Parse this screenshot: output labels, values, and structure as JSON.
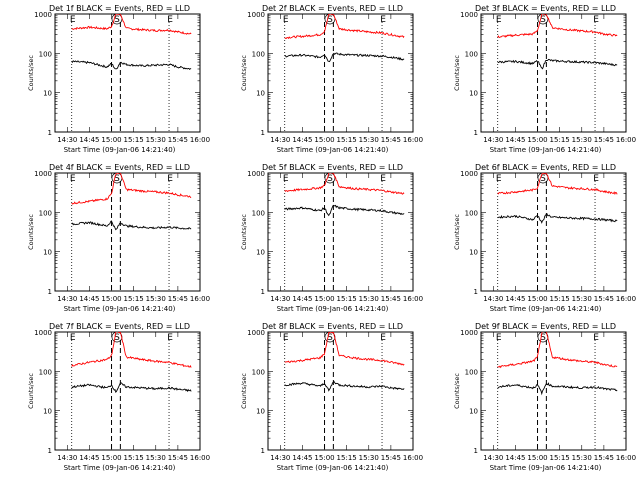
{
  "figure": {
    "xlabel": "Start Time (09-Jan-06 14:21:40)",
    "ylabel": "Counts/sec"
  },
  "chart_data": [
    {
      "type": "line",
      "title": "Det 1f BLACK = Events, RED = LLD",
      "xlabel": "Start Time (09-Jan-06 14:21:40)",
      "ylabel": "Counts/sec",
      "xlim": [
        "14:21:40",
        "16:00"
      ],
      "ylim": [
        1,
        1000
      ],
      "yscale": "log",
      "xticks": [
        "14:30",
        "14:45",
        "15:00",
        "15:15",
        "15:30",
        "15:45",
        "16:00"
      ],
      "yticks": [
        "1",
        "10",
        "100",
        "1000"
      ],
      "markers": [
        {
          "label": "E",
          "time": "14:33"
        },
        {
          "label": "S",
          "time": "15:03"
        },
        {
          "label": "E",
          "time": "15:39"
        }
      ],
      "vlines_dashed": [
        "15:00",
        "15:06"
      ],
      "series": [
        {
          "name": "LLD",
          "color": "#ff0000",
          "x": [
            "14:33",
            "14:45",
            "14:57",
            "15:00",
            "15:03",
            "15:06",
            "15:10",
            "15:20",
            "15:30",
            "15:39",
            "15:45",
            "15:54"
          ],
          "y": [
            420,
            460,
            420,
            480,
            1000,
            1000,
            430,
            400,
            380,
            390,
            350,
            310
          ]
        },
        {
          "name": "Events",
          "color": "#000000",
          "x": [
            "14:33",
            "14:45",
            "14:57",
            "15:00",
            "15:03",
            "15:06",
            "15:10",
            "15:20",
            "15:30",
            "15:39",
            "15:45",
            "15:54"
          ],
          "y": [
            62,
            58,
            45,
            55,
            38,
            60,
            52,
            48,
            50,
            52,
            45,
            40
          ]
        }
      ]
    },
    {
      "type": "line",
      "title": "Det 2f BLACK = Events, RED = LLD",
      "xlabel": "Start Time (09-Jan-06 14:21:40)",
      "ylabel": "Counts/sec",
      "xlim": [
        "14:21:40",
        "16:00"
      ],
      "ylim": [
        1,
        1000
      ],
      "yscale": "log",
      "xticks": [
        "14:30",
        "14:45",
        "15:00",
        "15:15",
        "15:30",
        "15:45",
        "16:00"
      ],
      "yticks": [
        "1",
        "10",
        "100",
        "1000"
      ],
      "markers": [
        {
          "label": "E",
          "time": "14:33"
        },
        {
          "label": "S",
          "time": "15:03"
        },
        {
          "label": "E",
          "time": "15:39"
        }
      ],
      "vlines_dashed": [
        "15:00",
        "15:06"
      ],
      "series": [
        {
          "name": "LLD",
          "color": "#ff0000",
          "x": [
            "14:33",
            "14:45",
            "14:57",
            "15:00",
            "15:03",
            "15:06",
            "15:10",
            "15:20",
            "15:30",
            "15:39",
            "15:45",
            "15:54"
          ],
          "y": [
            250,
            270,
            300,
            360,
            1000,
            1000,
            420,
            380,
            350,
            330,
            300,
            260
          ]
        },
        {
          "name": "Events",
          "color": "#000000",
          "x": [
            "14:33",
            "14:45",
            "14:57",
            "15:00",
            "15:03",
            "15:06",
            "15:10",
            "15:20",
            "15:30",
            "15:39",
            "15:45",
            "15:54"
          ],
          "y": [
            85,
            90,
            80,
            95,
            60,
            100,
            95,
            90,
            88,
            85,
            80,
            70
          ]
        }
      ]
    },
    {
      "type": "line",
      "title": "Det 3f BLACK = Events, RED = LLD",
      "xlabel": "Start Time (09-Jan-06 14:21:40)",
      "ylabel": "Counts/sec",
      "xlim": [
        "14:21:40",
        "16:00"
      ],
      "ylim": [
        1,
        1000
      ],
      "yscale": "log",
      "xticks": [
        "14:30",
        "14:45",
        "15:00",
        "15:15",
        "15:30",
        "15:45",
        "16:00"
      ],
      "yticks": [
        "1",
        "10",
        "100",
        "1000"
      ],
      "markers": [
        {
          "label": "E",
          "time": "14:33"
        },
        {
          "label": "S",
          "time": "15:03"
        },
        {
          "label": "E",
          "time": "15:39"
        }
      ],
      "vlines_dashed": [
        "15:00",
        "15:06"
      ],
      "series": [
        {
          "name": "LLD",
          "color": "#ff0000",
          "x": [
            "14:33",
            "14:45",
            "14:57",
            "15:00",
            "15:03",
            "15:06",
            "15:10",
            "15:20",
            "15:30",
            "15:39",
            "15:45",
            "15:54"
          ],
          "y": [
            260,
            290,
            310,
            380,
            1000,
            1000,
            450,
            400,
            370,
            350,
            310,
            280
          ]
        },
        {
          "name": "Events",
          "color": "#000000",
          "x": [
            "14:33",
            "14:45",
            "14:57",
            "15:00",
            "15:03",
            "15:06",
            "15:10",
            "15:20",
            "15:30",
            "15:39",
            "15:45",
            "15:54"
          ],
          "y": [
            60,
            62,
            55,
            65,
            40,
            70,
            65,
            62,
            60,
            58,
            55,
            50
          ]
        }
      ]
    },
    {
      "type": "line",
      "title": "Det 4f BLACK = Events, RED = LLD",
      "xlabel": "Start Time (09-Jan-06 14:21:40)",
      "ylabel": "Counts/sec",
      "xlim": [
        "14:21:40",
        "16:00"
      ],
      "ylim": [
        1,
        1000
      ],
      "yscale": "log",
      "xticks": [
        "14:30",
        "14:45",
        "15:00",
        "15:15",
        "15:30",
        "15:45",
        "16:00"
      ],
      "yticks": [
        "1",
        "10",
        "100",
        "1000"
      ],
      "markers": [
        {
          "label": "E",
          "time": "14:33"
        },
        {
          "label": "S",
          "time": "15:03"
        },
        {
          "label": "E",
          "time": "15:39"
        }
      ],
      "vlines_dashed": [
        "15:00",
        "15:06"
      ],
      "series": [
        {
          "name": "LLD",
          "color": "#ff0000",
          "x": [
            "14:33",
            "14:45",
            "14:57",
            "15:00",
            "15:03",
            "15:06",
            "15:10",
            "15:20",
            "15:30",
            "15:39",
            "15:45",
            "15:54"
          ],
          "y": [
            170,
            190,
            220,
            300,
            1000,
            1000,
            380,
            350,
            330,
            310,
            280,
            250
          ]
        },
        {
          "name": "Events",
          "color": "#000000",
          "x": [
            "14:33",
            "14:45",
            "14:57",
            "15:00",
            "15:03",
            "15:06",
            "15:10",
            "15:20",
            "15:30",
            "15:39",
            "15:45",
            "15:54"
          ],
          "y": [
            50,
            55,
            45,
            60,
            35,
            55,
            45,
            42,
            40,
            42,
            40,
            38
          ]
        }
      ]
    },
    {
      "type": "line",
      "title": "Det 5f BLACK = Events, RED = LLD",
      "xlabel": "Start Time (09-Jan-06 14:21:40)",
      "ylabel": "Counts/sec",
      "xlim": [
        "14:21:40",
        "16:00"
      ],
      "ylim": [
        1,
        1000
      ],
      "yscale": "log",
      "xticks": [
        "14:30",
        "14:45",
        "15:00",
        "15:15",
        "15:30",
        "15:45",
        "16:00"
      ],
      "yticks": [
        "1",
        "10",
        "100",
        "1000"
      ],
      "markers": [
        {
          "label": "E",
          "time": "14:33"
        },
        {
          "label": "S",
          "time": "15:03"
        },
        {
          "label": "E",
          "time": "15:39"
        }
      ],
      "vlines_dashed": [
        "15:00",
        "15:06"
      ],
      "series": [
        {
          "name": "LLD",
          "color": "#ff0000",
          "x": [
            "14:33",
            "14:45",
            "14:57",
            "15:00",
            "15:03",
            "15:06",
            "15:10",
            "15:20",
            "15:30",
            "15:39",
            "15:45",
            "15:54"
          ],
          "y": [
            350,
            380,
            420,
            480,
            1000,
            1000,
            450,
            400,
            380,
            360,
            330,
            300
          ]
        },
        {
          "name": "Events",
          "color": "#000000",
          "x": [
            "14:33",
            "14:45",
            "14:57",
            "15:00",
            "15:03",
            "15:06",
            "15:10",
            "15:20",
            "15:30",
            "15:39",
            "15:45",
            "15:54"
          ],
          "y": [
            120,
            130,
            110,
            130,
            80,
            150,
            130,
            120,
            115,
            110,
            100,
            90
          ]
        }
      ]
    },
    {
      "type": "line",
      "title": "Det 6f BLACK = Events, RED = LLD",
      "xlabel": "Start Time (09-Jan-06 14:21:40)",
      "ylabel": "Counts/sec",
      "xlim": [
        "14:21:40",
        "16:00"
      ],
      "ylim": [
        1,
        1000
      ],
      "yscale": "log",
      "xticks": [
        "14:30",
        "14:45",
        "15:00",
        "15:15",
        "15:30",
        "15:45",
        "16:00"
      ],
      "yticks": [
        "1",
        "10",
        "100",
        "1000"
      ],
      "markers": [
        {
          "label": "E",
          "time": "14:33"
        },
        {
          "label": "S",
          "time": "15:03"
        },
        {
          "label": "E",
          "time": "15:39"
        }
      ],
      "vlines_dashed": [
        "15:00",
        "15:06"
      ],
      "series": [
        {
          "name": "LLD",
          "color": "#ff0000",
          "x": [
            "14:33",
            "14:45",
            "14:57",
            "15:00",
            "15:03",
            "15:06",
            "15:10",
            "15:20",
            "15:30",
            "15:39",
            "15:45",
            "15:54"
          ],
          "y": [
            300,
            330,
            370,
            420,
            1000,
            1000,
            470,
            420,
            400,
            380,
            340,
            300
          ]
        },
        {
          "name": "Events",
          "color": "#000000",
          "x": [
            "14:33",
            "14:45",
            "14:57",
            "15:00",
            "15:03",
            "15:06",
            "15:10",
            "15:20",
            "15:30",
            "15:39",
            "15:45",
            "15:54"
          ],
          "y": [
            75,
            80,
            65,
            85,
            55,
            90,
            75,
            72,
            70,
            68,
            65,
            60
          ]
        }
      ]
    },
    {
      "type": "line",
      "title": "Det 7f BLACK = Events, RED = LLD",
      "xlabel": "Start Time (09-Jan-06 14:21:40)",
      "ylabel": "Counts/sec",
      "xlim": [
        "14:21:40",
        "16:00"
      ],
      "ylim": [
        1,
        1000
      ],
      "yscale": "log",
      "xticks": [
        "14:30",
        "14:45",
        "15:00",
        "15:15",
        "15:30",
        "15:45",
        "16:00"
      ],
      "yticks": [
        "1",
        "10",
        "100",
        "1000"
      ],
      "markers": [
        {
          "label": "E",
          "time": "14:33"
        },
        {
          "label": "S",
          "time": "15:03"
        },
        {
          "label": "E",
          "time": "15:39"
        }
      ],
      "vlines_dashed": [
        "15:00",
        "15:06"
      ],
      "series": [
        {
          "name": "LLD",
          "color": "#ff0000",
          "x": [
            "14:33",
            "14:45",
            "14:57",
            "15:00",
            "15:03",
            "15:06",
            "15:10",
            "15:20",
            "15:30",
            "15:39",
            "15:45",
            "15:54"
          ],
          "y": [
            140,
            170,
            200,
            250,
            1000,
            1000,
            230,
            200,
            180,
            170,
            150,
            130
          ]
        },
        {
          "name": "Events",
          "color": "#000000",
          "x": [
            "14:33",
            "14:45",
            "14:57",
            "15:00",
            "15:03",
            "15:06",
            "15:10",
            "15:20",
            "15:30",
            "15:39",
            "15:45",
            "15:54"
          ],
          "y": [
            40,
            45,
            38,
            45,
            30,
            50,
            40,
            38,
            36,
            38,
            35,
            32
          ]
        }
      ]
    },
    {
      "type": "line",
      "title": "Det 8f BLACK = Events, RED = LLD",
      "xlabel": "Start Time (09-Jan-06 14:21:40)",
      "ylabel": "Counts/sec",
      "xlim": [
        "14:21:40",
        "16:00"
      ],
      "ylim": [
        1,
        1000
      ],
      "yscale": "log",
      "xticks": [
        "14:30",
        "14:45",
        "15:00",
        "15:15",
        "15:30",
        "15:45",
        "16:00"
      ],
      "yticks": [
        "1",
        "10",
        "100",
        "1000"
      ],
      "markers": [
        {
          "label": "E",
          "time": "14:33"
        },
        {
          "label": "S",
          "time": "15:03"
        },
        {
          "label": "E",
          "time": "15:39"
        }
      ],
      "vlines_dashed": [
        "15:00",
        "15:06"
      ],
      "series": [
        {
          "name": "LLD",
          "color": "#ff0000",
          "x": [
            "14:33",
            "14:45",
            "14:57",
            "15:00",
            "15:03",
            "15:06",
            "15:10",
            "15:20",
            "15:30",
            "15:39",
            "15:45",
            "15:54"
          ],
          "y": [
            170,
            190,
            220,
            280,
            1000,
            1000,
            250,
            220,
            200,
            190,
            170,
            150
          ]
        },
        {
          "name": "Events",
          "color": "#000000",
          "x": [
            "14:33",
            "14:45",
            "14:57",
            "15:00",
            "15:03",
            "15:06",
            "15:10",
            "15:20",
            "15:30",
            "15:39",
            "15:45",
            "15:54"
          ],
          "y": [
            45,
            50,
            42,
            50,
            32,
            55,
            45,
            42,
            40,
            42,
            38,
            35
          ]
        }
      ]
    },
    {
      "type": "line",
      "title": "Det 9f BLACK = Events, RED = LLD",
      "xlabel": "Start Time (09-Jan-06 14:21:40)",
      "ylabel": "Counts/sec",
      "xlim": [
        "14:21:40",
        "16:00"
      ],
      "ylim": [
        1,
        1000
      ],
      "yscale": "log",
      "xticks": [
        "14:30",
        "14:45",
        "15:00",
        "15:15",
        "15:30",
        "15:45",
        "16:00"
      ],
      "yticks": [
        "1",
        "10",
        "100",
        "1000"
      ],
      "markers": [
        {
          "label": "E",
          "time": "14:33"
        },
        {
          "label": "S",
          "time": "15:03"
        },
        {
          "label": "E",
          "time": "15:39"
        }
      ],
      "vlines_dashed": [
        "15:00",
        "15:06"
      ],
      "series": [
        {
          "name": "LLD",
          "color": "#ff0000",
          "x": [
            "14:33",
            "14:45",
            "14:57",
            "15:00",
            "15:03",
            "15:06",
            "15:10",
            "15:20",
            "15:30",
            "15:39",
            "15:45",
            "15:54"
          ],
          "y": [
            130,
            150,
            180,
            230,
            1000,
            1000,
            230,
            200,
            180,
            170,
            150,
            130
          ]
        },
        {
          "name": "Events",
          "color": "#000000",
          "x": [
            "14:33",
            "14:45",
            "14:57",
            "15:00",
            "15:03",
            "15:06",
            "15:10",
            "15:20",
            "15:30",
            "15:39",
            "15:45",
            "15:54"
          ],
          "y": [
            40,
            45,
            38,
            45,
            28,
            50,
            42,
            40,
            38,
            40,
            36,
            33
          ]
        }
      ]
    }
  ]
}
